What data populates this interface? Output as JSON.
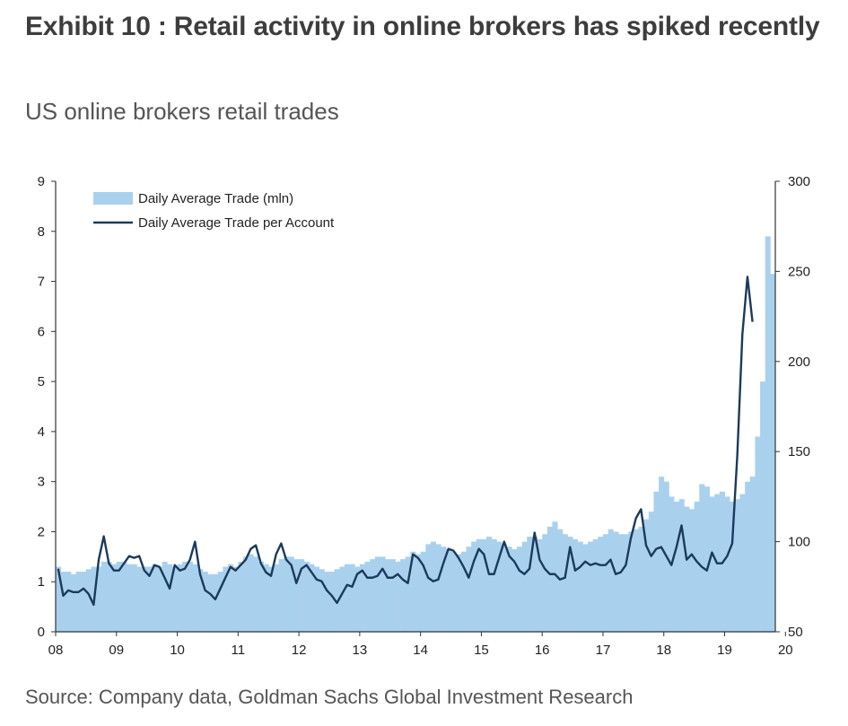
{
  "header": {
    "title": "Exhibit 10 : Retail activity in online brokers has spiked recently",
    "subtitle": "US online brokers retail trades"
  },
  "footer": {
    "source": "Source: Company data, Goldman Sachs Global Investment Research"
  },
  "colors": {
    "bars": "#a9d1ee",
    "line": "#1b3a5c",
    "axis": "#333333"
  },
  "chart_data": {
    "type": "bar",
    "title": "",
    "xlabel": "",
    "ylabel": "",
    "y2label": "",
    "grid": false,
    "legend_position": "top-left",
    "ylim": [
      0,
      9
    ],
    "y2lim": [
      50,
      300
    ],
    "yticks": [
      "0",
      "1",
      "2",
      "3",
      "4",
      "5",
      "6",
      "7",
      "8",
      "9"
    ],
    "y2ticks": [
      "50",
      "100",
      "150",
      "200",
      "250",
      "300"
    ],
    "xticks": [
      "08",
      "09",
      "10",
      "11",
      "12",
      "13",
      "14",
      "15",
      "16",
      "17",
      "18",
      "19",
      "20"
    ],
    "x_start": "2008-01",
    "x_end": "2020-04",
    "series": [
      {
        "name": "Daily Average Trade (mln)",
        "type": "bar",
        "axis": "left",
        "values": [
          1.3,
          1.2,
          1.2,
          1.15,
          1.2,
          1.2,
          1.25,
          1.3,
          1.3,
          1.4,
          1.4,
          1.35,
          1.4,
          1.4,
          1.35,
          1.35,
          1.3,
          1.3,
          1.3,
          1.35,
          1.3,
          1.4,
          1.35,
          1.3,
          1.35,
          1.4,
          1.4,
          1.35,
          1.25,
          1.2,
          1.15,
          1.15,
          1.2,
          1.3,
          1.35,
          1.3,
          1.4,
          1.5,
          1.55,
          1.5,
          1.4,
          1.35,
          1.3,
          1.35,
          1.45,
          1.5,
          1.5,
          1.45,
          1.45,
          1.4,
          1.35,
          1.3,
          1.25,
          1.2,
          1.2,
          1.25,
          1.3,
          1.35,
          1.35,
          1.3,
          1.35,
          1.4,
          1.45,
          1.5,
          1.5,
          1.45,
          1.45,
          1.4,
          1.45,
          1.5,
          1.6,
          1.55,
          1.6,
          1.75,
          1.8,
          1.75,
          1.7,
          1.65,
          1.6,
          1.55,
          1.6,
          1.7,
          1.8,
          1.85,
          1.85,
          1.9,
          1.85,
          1.8,
          1.75,
          1.7,
          1.65,
          1.7,
          1.8,
          1.9,
          1.9,
          1.85,
          1.95,
          2.1,
          2.2,
          2.05,
          1.95,
          1.9,
          1.85,
          1.8,
          1.75,
          1.8,
          1.85,
          1.9,
          1.95,
          2.05,
          2.0,
          1.95,
          1.95,
          2.0,
          2.05,
          2.1,
          2.25,
          2.4,
          2.8,
          3.1,
          3.0,
          2.7,
          2.6,
          2.65,
          2.5,
          2.45,
          2.6,
          2.95,
          2.9,
          2.7,
          2.75,
          2.8,
          2.7,
          2.6,
          2.65,
          2.75,
          3.0,
          3.1,
          3.9,
          5.0,
          7.9,
          7.15
        ]
      },
      {
        "name": "Daily Average Trade per Account",
        "type": "line",
        "axis": "right",
        "values": [
          85,
          70,
          73,
          72,
          72,
          74,
          71,
          65,
          90,
          103,
          88,
          84,
          84,
          88,
          92,
          91,
          92,
          84,
          81,
          87,
          86,
          80,
          74,
          87,
          84,
          85,
          90,
          100,
          82,
          73,
          71,
          68,
          74,
          80,
          86,
          84,
          87,
          90,
          96,
          98,
          88,
          83,
          81,
          93,
          99,
          90,
          87,
          77,
          85,
          87,
          83,
          79,
          78,
          73,
          70,
          66,
          71,
          76,
          75,
          82,
          84,
          80,
          80,
          81,
          85,
          80,
          80,
          82,
          79,
          77,
          93,
          91,
          87,
          80,
          78,
          79,
          88,
          96,
          95,
          91,
          86,
          80,
          89,
          96,
          93,
          82,
          82,
          91,
          100,
          92,
          89,
          84,
          82,
          85,
          105,
          90,
          85,
          82,
          82,
          79,
          80,
          97,
          84,
          86,
          89,
          87,
          88,
          87,
          87,
          90,
          82,
          83,
          87,
          102,
          113,
          118,
          98,
          92,
          96,
          97,
          92,
          87,
          97,
          109,
          90,
          93,
          89,
          86,
          84,
          94,
          88,
          88,
          92,
          99,
          148,
          215,
          247,
          222
        ]
      }
    ]
  }
}
